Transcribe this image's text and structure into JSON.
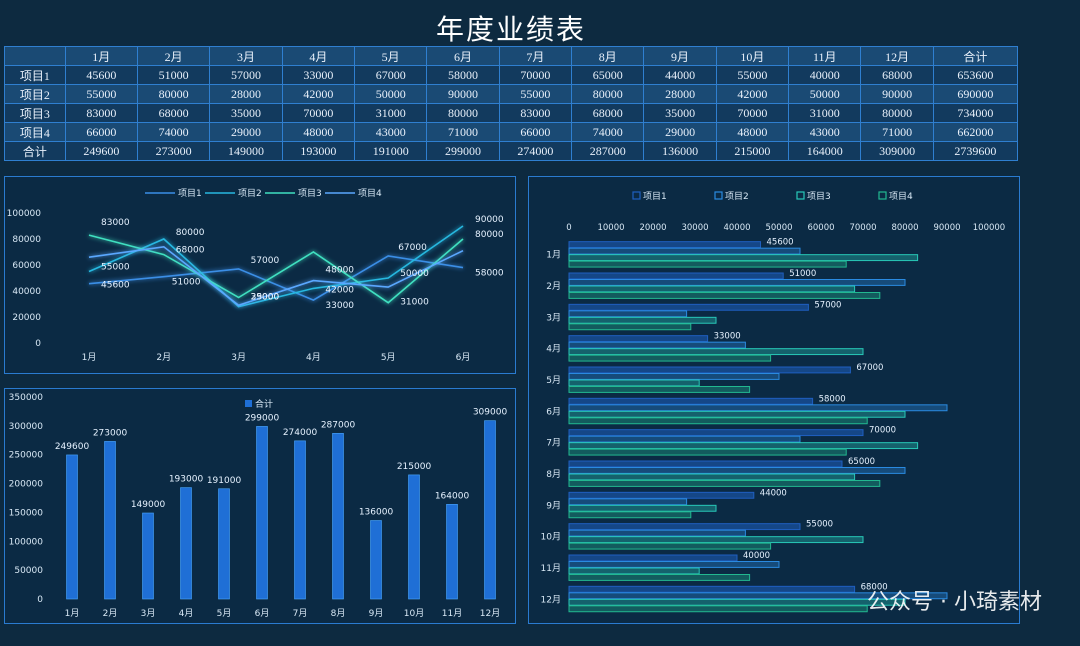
{
  "title": "年度业绩表",
  "table": {
    "columns": [
      "",
      "1月",
      "2月",
      "3月",
      "4月",
      "5月",
      "6月",
      "7月",
      "8月",
      "9月",
      "10月",
      "11月",
      "12月",
      "合计"
    ],
    "rows": [
      [
        "项目1",
        "45600",
        "51000",
        "57000",
        "33000",
        "67000",
        "58000",
        "70000",
        "65000",
        "44000",
        "55000",
        "40000",
        "68000",
        "653600"
      ],
      [
        "项目2",
        "55000",
        "80000",
        "28000",
        "42000",
        "50000",
        "90000",
        "55000",
        "80000",
        "28000",
        "42000",
        "50000",
        "90000",
        "690000"
      ],
      [
        "项目3",
        "83000",
        "68000",
        "35000",
        "70000",
        "31000",
        "80000",
        "83000",
        "68000",
        "35000",
        "70000",
        "31000",
        "80000",
        "734000"
      ],
      [
        "项目4",
        "66000",
        "74000",
        "29000",
        "48000",
        "43000",
        "71000",
        "66000",
        "74000",
        "29000",
        "48000",
        "43000",
        "71000",
        "662000"
      ],
      [
        "合计",
        "249600",
        "273000",
        "149000",
        "193000",
        "191000",
        "299000",
        "274000",
        "287000",
        "136000",
        "215000",
        "164000",
        "309000",
        "2739600"
      ]
    ]
  },
  "chart_data": [
    {
      "type": "line",
      "categories": [
        "1月",
        "2月",
        "3月",
        "4月",
        "5月",
        "6月"
      ],
      "series": [
        {
          "name": "项目1",
          "values": [
            45600,
            51000,
            57000,
            33000,
            67000,
            58000
          ]
        },
        {
          "name": "项目2",
          "values": [
            55000,
            80000,
            28000,
            42000,
            50000,
            90000
          ]
        },
        {
          "name": "项目3",
          "values": [
            83000,
            68000,
            35000,
            70000,
            31000,
            80000
          ]
        },
        {
          "name": "项目4",
          "values": [
            66000,
            74000,
            29000,
            48000,
            43000,
            71000
          ]
        }
      ],
      "ylim": [
        0,
        100000
      ],
      "yticks": [
        0,
        20000,
        40000,
        60000,
        80000,
        100000
      ],
      "legend": "top",
      "colors": [
        "#3a8ee6",
        "#27b8e0",
        "#3fe0c0",
        "#5aa8ff"
      ]
    },
    {
      "type": "bar",
      "categories": [
        "1月",
        "2月",
        "3月",
        "4月",
        "5月",
        "6月",
        "7月",
        "8月",
        "9月",
        "10月",
        "11月",
        "12月"
      ],
      "series": [
        {
          "name": "合计",
          "values": [
            249600,
            273000,
            149000,
            193000,
            191000,
            299000,
            274000,
            287000,
            136000,
            215000,
            164000,
            309000
          ]
        }
      ],
      "ylim": [
        0,
        350000
      ],
      "yticks": [
        0,
        50000,
        100000,
        150000,
        200000,
        250000,
        300000,
        350000
      ],
      "legend": "top",
      "colors": [
        "#1f6fd6"
      ]
    },
    {
      "type": "bar",
      "orientation": "horizontal",
      "categories": [
        "1月",
        "2月",
        "3月",
        "4月",
        "5月",
        "6月",
        "7月",
        "8月",
        "9月",
        "10月",
        "11月",
        "12月"
      ],
      "series": [
        {
          "name": "项目1",
          "values": [
            45600,
            51000,
            57000,
            33000,
            67000,
            58000,
            70000,
            65000,
            44000,
            55000,
            40000,
            68000
          ]
        },
        {
          "name": "项目2",
          "values": [
            55000,
            80000,
            28000,
            42000,
            50000,
            90000,
            55000,
            80000,
            28000,
            42000,
            50000,
            90000
          ]
        },
        {
          "name": "项目3",
          "values": [
            83000,
            68000,
            35000,
            70000,
            31000,
            80000,
            83000,
            68000,
            35000,
            70000,
            31000,
            80000
          ]
        },
        {
          "name": "项目4",
          "values": [
            66000,
            74000,
            29000,
            48000,
            43000,
            71000,
            66000,
            74000,
            29000,
            48000,
            43000,
            71000
          ]
        }
      ],
      "data_labels_series": "项目1",
      "xlim": [
        0,
        100000
      ],
      "xticks": [
        0,
        10000,
        20000,
        30000,
        40000,
        50000,
        60000,
        70000,
        80000,
        90000,
        100000
      ],
      "legend": "top",
      "colors": [
        "#1f5fc0",
        "#2a8ae0",
        "#28c8b8",
        "#22b890"
      ]
    }
  ],
  "watermark": "公众号 · 小琦素材"
}
